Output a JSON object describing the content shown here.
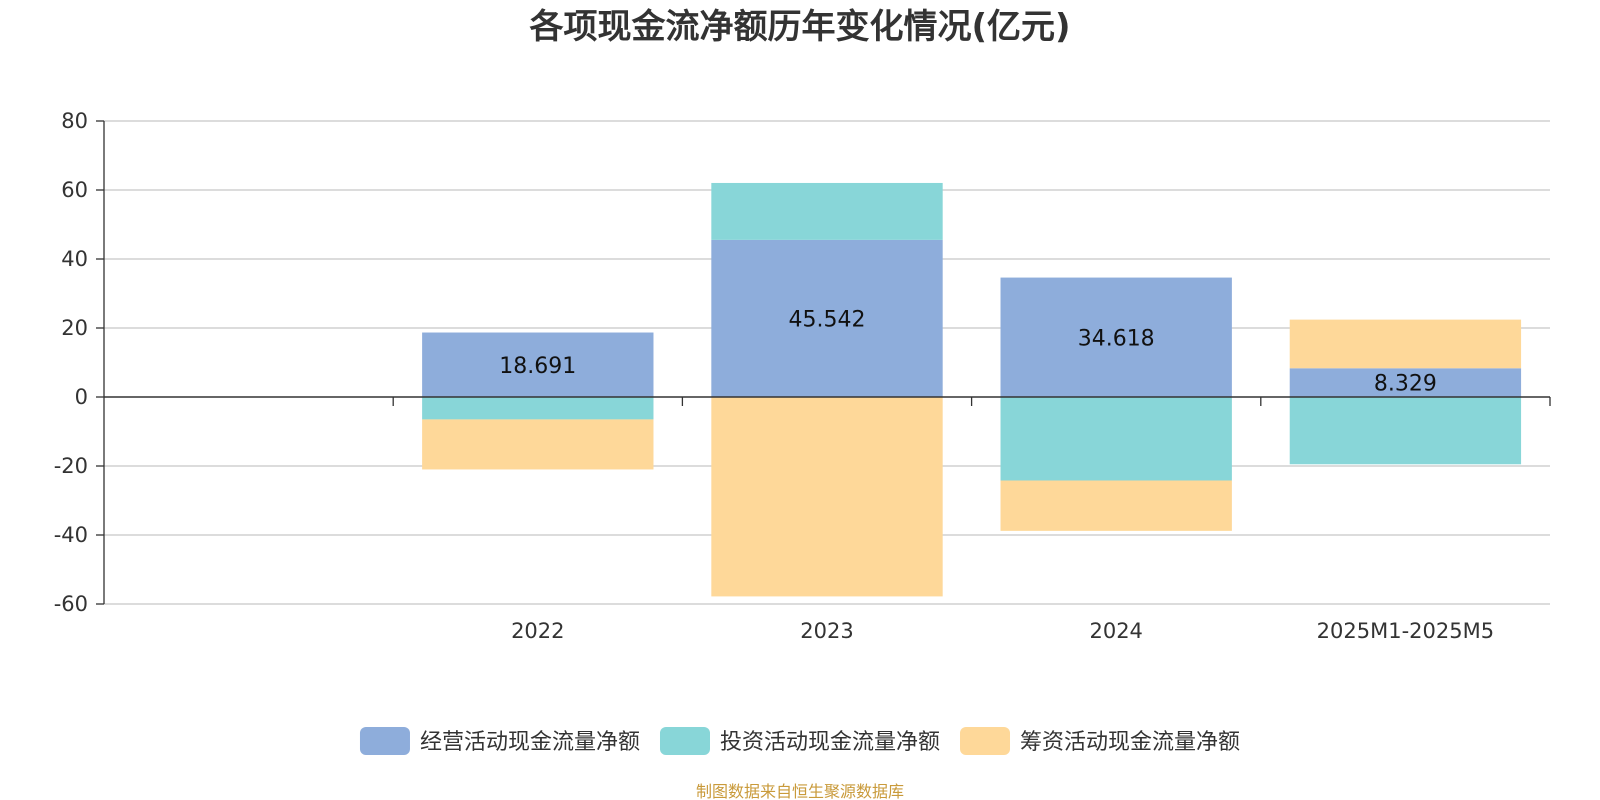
{
  "chart_data": {
    "type": "bar",
    "stacked": true,
    "title": "各项现金流净额历年变化情况(亿元)",
    "xlabel": "",
    "ylabel": "",
    "categories": [
      "2022",
      "2023",
      "2024",
      "2025M1-2025M5"
    ],
    "ylim": [
      -60,
      80
    ],
    "yticks": [
      80,
      60,
      40,
      20,
      0,
      -20,
      -40,
      -60
    ],
    "grid": true,
    "legend_position": "bottom",
    "series": [
      {
        "name": "经营活动现金流量净额",
        "color": "#8eaddb",
        "values": [
          18.691,
          45.542,
          34.618,
          8.329
        ],
        "labels": [
          "18.691",
          "45.542",
          "34.618",
          "8.329"
        ]
      },
      {
        "name": "投资活动现金流量净额",
        "color": "#88d6d8",
        "values": [
          -6.5,
          16.5,
          -24.2,
          -19.5
        ]
      },
      {
        "name": "筹资活动现金流量净额",
        "color": "#fed899",
        "values": [
          -14.5,
          -57.8,
          -14.6,
          14.1
        ]
      }
    ]
  },
  "source": {
    "text": "制图数据来自恒生聚源数据库",
    "color": "#c99a3a"
  }
}
